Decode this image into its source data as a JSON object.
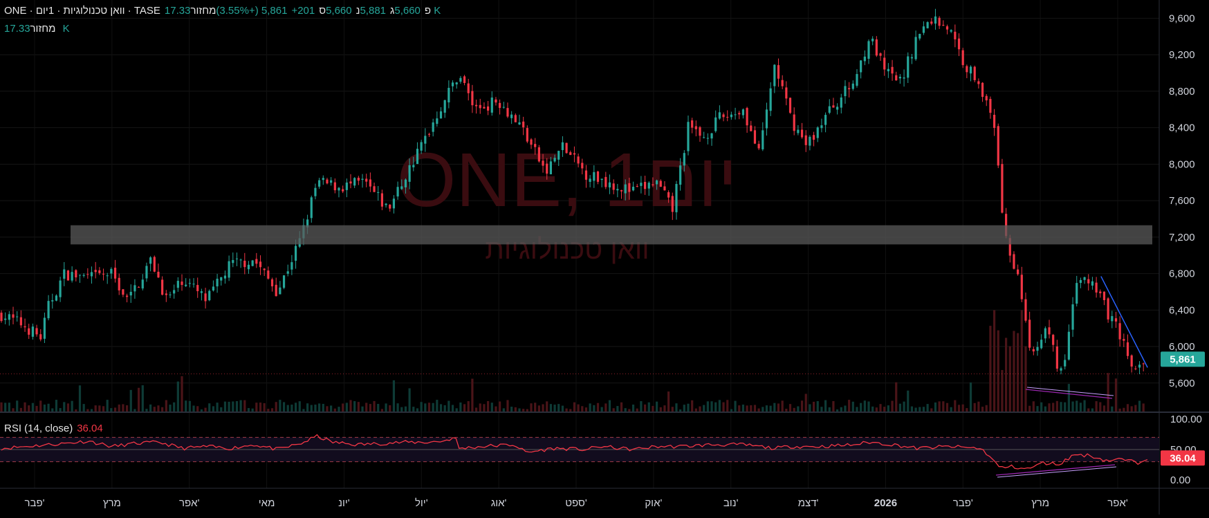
{
  "header": {
    "symbol_line": "ONE · וואן טכנולוגיות · 1יום · TASE",
    "o_label": "פ",
    "o_value": "5,660",
    "h_label": "ג",
    "h_value": "5,881",
    "l_label": "נ",
    "l_value": "5,660",
    "c_label": "ס",
    "c_value": "5,861",
    "change": "+201 (+3.55%)",
    "volume_label": "מחזור",
    "volume_value": "17.33 K"
  },
  "volume_legend": {
    "label": "מחזור",
    "value": "17.33 K"
  },
  "watermark": {
    "main": "ONE, 1יום",
    "sub": "וואן טכנולוגיות"
  },
  "rsi": {
    "label": "RSI (14, close)",
    "value": "36.04",
    "upper_band": 70,
    "lower_band": 30,
    "mid": 50,
    "ticks": [
      "100.00",
      "50.00",
      "0.00"
    ],
    "approx_path": [
      [
        0,
        52
      ],
      [
        40,
        56
      ],
      [
        80,
        60
      ],
      [
        110,
        64
      ],
      [
        140,
        55
      ],
      [
        170,
        60
      ],
      [
        200,
        62
      ],
      [
        230,
        52
      ],
      [
        260,
        55
      ],
      [
        290,
        52
      ],
      [
        320,
        58
      ],
      [
        350,
        50
      ],
      [
        380,
        60
      ],
      [
        400,
        72
      ],
      [
        420,
        62
      ],
      [
        450,
        58
      ],
      [
        480,
        60
      ],
      [
        510,
        62
      ],
      [
        540,
        62
      ],
      [
        560,
        64
      ],
      [
        575,
        70
      ],
      [
        580,
        52
      ],
      [
        620,
        56
      ],
      [
        650,
        58
      ],
      [
        665,
        45
      ],
      [
        700,
        52
      ],
      [
        740,
        50
      ],
      [
        760,
        55
      ],
      [
        800,
        50
      ],
      [
        830,
        55
      ],
      [
        860,
        55
      ],
      [
        900,
        58
      ],
      [
        940,
        58
      ],
      [
        980,
        52
      ],
      [
        1000,
        55
      ],
      [
        1040,
        55
      ],
      [
        1080,
        58
      ],
      [
        1100,
        62
      ],
      [
        1130,
        58
      ],
      [
        1160,
        52
      ],
      [
        1200,
        55
      ],
      [
        1240,
        52
      ],
      [
        1250,
        42
      ],
      [
        1265,
        20
      ],
      [
        1280,
        22
      ],
      [
        1300,
        18
      ],
      [
        1320,
        28
      ],
      [
        1340,
        26
      ],
      [
        1360,
        42
      ],
      [
        1380,
        40
      ],
      [
        1400,
        32
      ],
      [
        1420,
        34
      ],
      [
        1440,
        28
      ],
      [
        1450,
        36
      ]
    ]
  },
  "colors": {
    "up": "#26a69a",
    "down": "#f23645",
    "rsi_line": "#f23645",
    "trendline": "#2962ff",
    "divergence": "#9c27b0",
    "resistance_zone": "#5a5a5a",
    "price_tag": "#26a69a",
    "rsi_tag": "#f23645"
  },
  "chart_data": {
    "type": "candlestick",
    "price_axis_ticks": [
      "9,600",
      "9,200",
      "8,800",
      "8,400",
      "8,000",
      "7,600",
      "7,200",
      "6,800",
      "6,400",
      "6,000",
      "5,600"
    ],
    "ylim": [
      5280,
      9800
    ],
    "last_price": "5,861",
    "x_labels": [
      "פבר'",
      "מרץ",
      "אפר'",
      "מאי",
      "יונ'",
      "יול'",
      "אוג'",
      "ספט'",
      "אוק'",
      "נוב'",
      "דצמ'",
      "2026",
      "פבר'",
      "מרץ",
      "אפר'"
    ],
    "resistance_zone": [
      7120,
      7330
    ],
    "close_path": [
      [
        0,
        6350
      ],
      [
        25,
        6250
      ],
      [
        50,
        6100
      ],
      [
        60,
        6450
      ],
      [
        80,
        6800
      ],
      [
        110,
        6750
      ],
      [
        140,
        6800
      ],
      [
        160,
        6500
      ],
      [
        190,
        6950
      ],
      [
        210,
        6500
      ],
      [
        230,
        6750
      ],
      [
        260,
        6500
      ],
      [
        290,
        6900
      ],
      [
        320,
        6950
      ],
      [
        350,
        6600
      ],
      [
        380,
        7200
      ],
      [
        400,
        7800
      ],
      [
        430,
        7750
      ],
      [
        460,
        7800
      ],
      [
        490,
        7500
      ],
      [
        520,
        8000
      ],
      [
        555,
        8600
      ],
      [
        580,
        9000
      ],
      [
        600,
        8600
      ],
      [
        630,
        8700
      ],
      [
        660,
        8400
      ],
      [
        690,
        7900
      ],
      [
        710,
        8200
      ],
      [
        740,
        7900
      ],
      [
        770,
        7800
      ],
      [
        800,
        7700
      ],
      [
        830,
        7800
      ],
      [
        850,
        7500
      ],
      [
        870,
        8400
      ],
      [
        890,
        8300
      ],
      [
        910,
        8500
      ],
      [
        940,
        8600
      ],
      [
        960,
        8100
      ],
      [
        980,
        9100
      ],
      [
        1000,
        8500
      ],
      [
        1020,
        8200
      ],
      [
        1050,
        8600
      ],
      [
        1080,
        8900
      ],
      [
        1100,
        9400
      ],
      [
        1120,
        9000
      ],
      [
        1140,
        8900
      ],
      [
        1160,
        9400
      ],
      [
        1180,
        9600
      ],
      [
        1200,
        9500
      ],
      [
        1220,
        9100
      ],
      [
        1240,
        8900
      ],
      [
        1260,
        8300
      ],
      [
        1268,
        7400
      ],
      [
        1280,
        6950
      ],
      [
        1290,
        6700
      ],
      [
        1300,
        6100
      ],
      [
        1310,
        5850
      ],
      [
        1320,
        6200
      ],
      [
        1330,
        6050
      ],
      [
        1340,
        5700
      ],
      [
        1350,
        5900
      ],
      [
        1360,
        6700
      ],
      [
        1380,
        6700
      ],
      [
        1400,
        6400
      ],
      [
        1420,
        6100
      ],
      [
        1435,
        5700
      ],
      [
        1450,
        5861
      ]
    ],
    "trendline": [
      [
        1395,
        6770
      ],
      [
        1454,
        5770
      ]
    ]
  }
}
